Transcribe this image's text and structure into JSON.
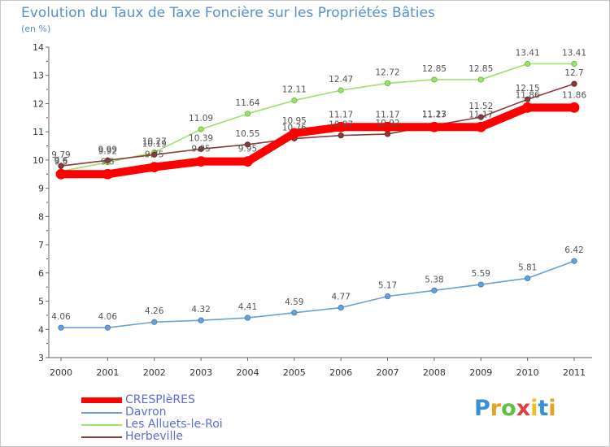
{
  "header": {
    "title": "Evolution du Taux de Taxe Foncière sur les Propriétés Bâties",
    "unit": "(en %)"
  },
  "chart_data": {
    "type": "line",
    "title": "Evolution du Taux de Taxe Foncière sur les Propriétés Bâties",
    "ylabel": "(en %)",
    "xlabel": "",
    "categories": [
      "2000",
      "2001",
      "2002",
      "2003",
      "2004",
      "2005",
      "2006",
      "2007",
      "2008",
      "2009",
      "2010",
      "2011"
    ],
    "y_ticks": [
      "3",
      "4",
      "5",
      "6",
      "7",
      "8",
      "9",
      "10",
      "11",
      "12",
      "13",
      "14"
    ],
    "ylim": [
      3,
      14
    ],
    "grid": false,
    "series": [
      {
        "name": "CRESPIèRES",
        "color": "#ff0000",
        "values": [
          9.5,
          9.5,
          9.75,
          9.95,
          9.95,
          10.95,
          11.17,
          11.17,
          11.17,
          11.17,
          11.86,
          11.86
        ],
        "labels": [
          "9.5",
          "9.5",
          "9.75",
          "9.95",
          "9.95",
          "10.95",
          "11.17",
          "11.17",
          "11.17",
          "11.17",
          "11.86",
          "11.86"
        ]
      },
      {
        "name": "Davron",
        "color": "#6aa0d8",
        "values": [
          4.06,
          4.06,
          4.26,
          4.32,
          4.41,
          4.59,
          4.77,
          5.17,
          5.38,
          5.59,
          5.81,
          6.42
        ],
        "labels": [
          "4.06",
          "4.06",
          "4.26",
          "4.32",
          "4.41",
          "4.59",
          "4.77",
          "5.17",
          "5.38",
          "5.59",
          "5.81",
          "6.42"
        ]
      },
      {
        "name": "Les Alluets-le-Roi",
        "color": "#9de06e",
        "values": [
          9.6,
          9.92,
          10.27,
          11.09,
          11.64,
          12.11,
          12.47,
          12.72,
          12.85,
          12.85,
          13.41,
          13.41
        ],
        "labels": [
          "9.6",
          "9.92",
          "10.27",
          "11.09",
          "11.64",
          "12.11",
          "12.47",
          "12.72",
          "12.85",
          "12.85",
          "13.41",
          "13.41"
        ]
      },
      {
        "name": "Herbeville",
        "color": "#8b3a3a",
        "values": [
          9.79,
          9.99,
          10.19,
          10.39,
          10.55,
          10.76,
          10.87,
          10.92,
          11.23,
          11.52,
          12.15,
          12.7
        ],
        "labels": [
          "9.79",
          "9.99",
          "10.19",
          "10.39",
          "10.55",
          "10.76",
          "10.87",
          "10.92",
          "11.23",
          "11.52",
          "12.15",
          "12.7"
        ]
      }
    ],
    "legend_position": "bottom-left"
  },
  "legend": {
    "items": [
      {
        "label": "CRESPIèRES"
      },
      {
        "label": "Davron"
      },
      {
        "label": "Les Alluets-le-Roi"
      },
      {
        "label": "Herbeville"
      }
    ]
  },
  "logo": {
    "letters": [
      "P",
      "r",
      "o",
      "x",
      "i",
      "t",
      "i"
    ],
    "colors": [
      "#3a8fd8",
      "#e8a020",
      "#5cc040",
      "#e04040",
      "#f0c020",
      "#3a8fd8",
      "#e8a020"
    ]
  }
}
